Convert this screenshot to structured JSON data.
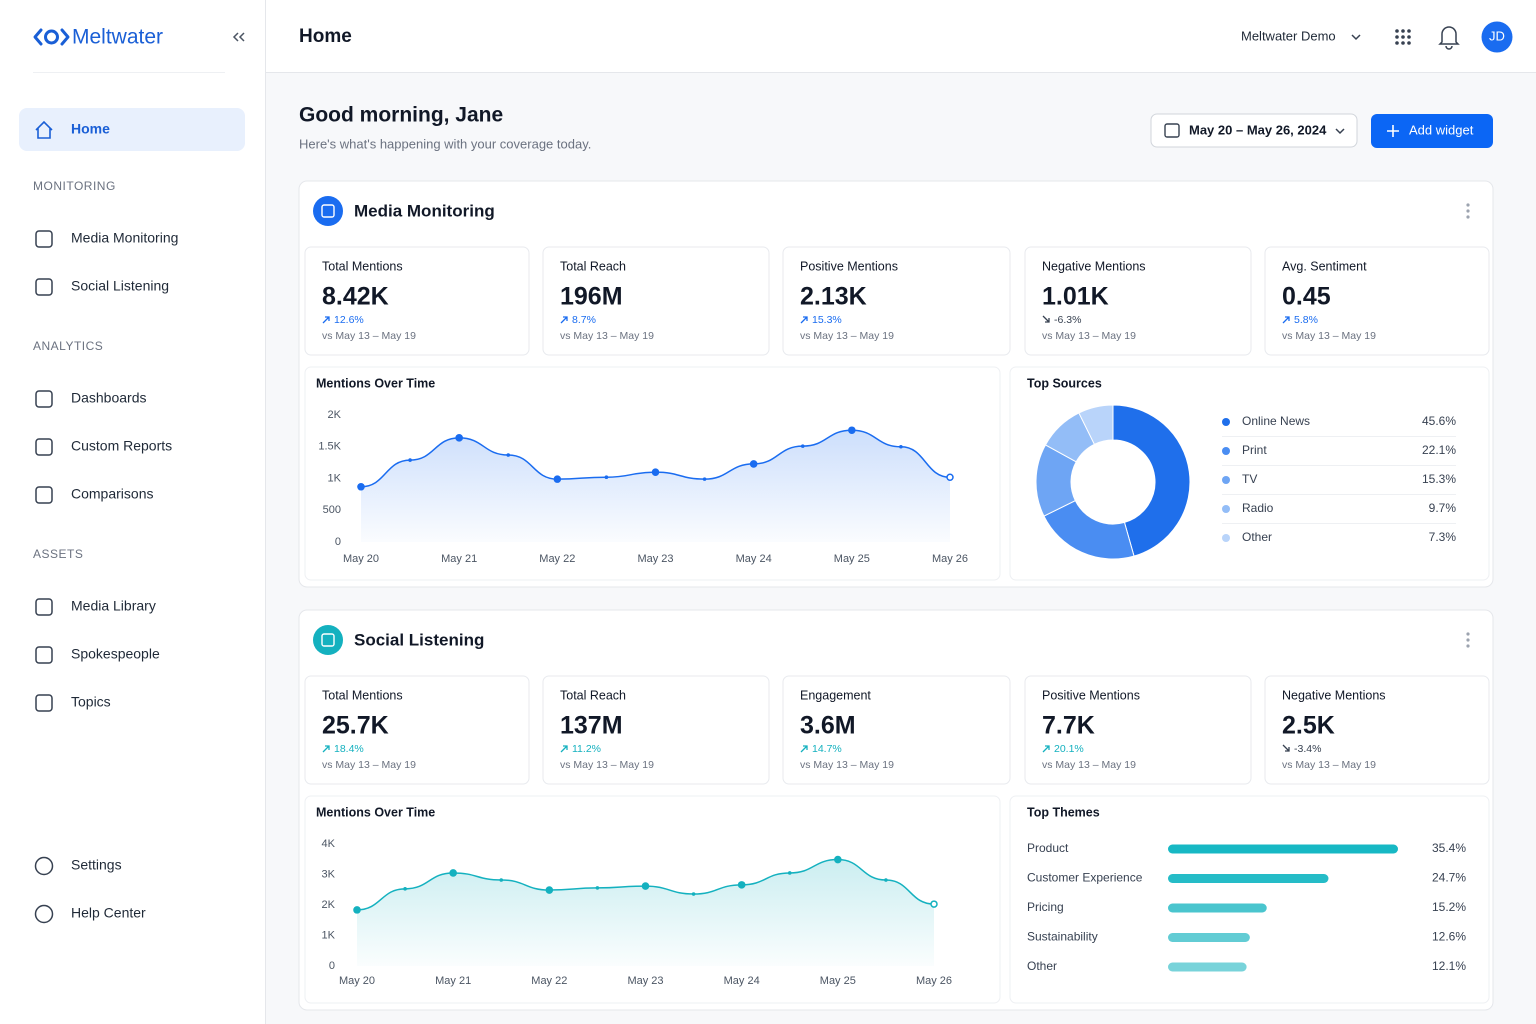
{
  "sidebar": {
    "brand": "Meltwater",
    "home": "Home",
    "sections": [
      {
        "title": "MONITORING",
        "items": [
          "Media Monitoring",
          "Social Listening"
        ]
      },
      {
        "title": "ANALYTICS",
        "items": [
          "Dashboards",
          "Custom Reports",
          "Comparisons"
        ]
      },
      {
        "title": "ASSETS",
        "items": [
          "Media Library",
          "Spokespeople",
          "Topics"
        ]
      }
    ],
    "footer": [
      "Settings",
      "Help Center"
    ]
  },
  "header": {
    "title": "Home",
    "account": "Meltwater Demo",
    "avatar": "JD"
  },
  "greeting": {
    "title": "Good morning, Jane",
    "subtitle": "Here's what's happening with your coverage today.",
    "date_range": "May 20 – May 26, 2024",
    "add_widget": "Add widget"
  },
  "panels": [
    {
      "title": "Media Monitoring",
      "color": "#1a6cf0",
      "kpis": [
        {
          "label": "Total Mentions",
          "value": "8.42K",
          "change": "12.6%",
          "period": "vs May 13 – May 19"
        },
        {
          "label": "Total Reach",
          "value": "196M",
          "change": "8.7%",
          "period": "vs May 13 – May 19"
        },
        {
          "label": "Positive Mentions",
          "value": "2.13K",
          "change": "15.3%",
          "period": "vs May 13 – May 19"
        },
        {
          "label": "Negative Mentions",
          "value": "1.01K",
          "change": "-6.3%",
          "period": "vs May 13 – May 19"
        },
        {
          "label": "Avg. Sentiment",
          "value": "0.45",
          "change": "5.8%",
          "period": "vs May 13 – May 19"
        }
      ],
      "chart_data": [
        {
          "type": "line",
          "title": "Mentions Over Time",
          "categories": [
            "May 20",
            null,
            "May 21",
            null,
            "May 22",
            null,
            "May 23",
            null,
            "May 24",
            null,
            "May 25",
            null,
            "May 26"
          ],
          "values": [
            870,
            1290,
            1640,
            1370,
            990,
            1020,
            1100,
            990,
            1230,
            1510,
            1760,
            1500,
            1020
          ],
          "color": "#1a6cf0",
          "ylim": [
            0,
            2000
          ],
          "yticks": [
            0,
            500,
            {
              "value": 1000,
              "label": "1K"
            },
            {
              "value": 1500,
              "label": "1.5K"
            },
            {
              "value": 2000,
              "label": "2K"
            }
          ]
        },
        {
          "type": "donut",
          "title": "Top Sources",
          "categories": [
            "Online News",
            "Print",
            "TV",
            "Radio",
            "Other"
          ],
          "values": [
            45.6,
            22.1,
            15.3,
            9.7,
            7.3
          ],
          "value_labels": [
            "45.6%",
            "22.1%",
            "15.3%",
            "9.7%",
            "7.3%"
          ],
          "colors": [
            "#1f6feb",
            "#4a8df2",
            "#6ea5f4",
            "#93bdf7",
            "#b9d4fa"
          ]
        }
      ]
    },
    {
      "title": "Social Listening",
      "color": "#14b1bf",
      "kpis": [
        {
          "label": "Total Mentions",
          "value": "25.7K",
          "change": "18.4%",
          "period": "vs May 13 – May 19"
        },
        {
          "label": "Total Reach",
          "value": "137M",
          "change": "11.2%",
          "period": "vs May 13 – May 19"
        },
        {
          "label": "Engagement",
          "value": "3.6M",
          "change": "14.7%",
          "period": "vs May 13 – May 19"
        },
        {
          "label": "Positive Mentions",
          "value": "7.7K",
          "change": "20.1%",
          "period": "vs May 13 – May 19"
        },
        {
          "label": "Negative Mentions",
          "value": "2.5K",
          "change": "-3.4%",
          "period": "vs May 13 – May 19"
        }
      ],
      "chart_data": [
        {
          "type": "line",
          "title": "Mentions Over Time",
          "categories": [
            "May 20",
            null,
            "May 21",
            null,
            "May 22",
            null,
            "May 23",
            null,
            "May 24",
            null,
            "May 25",
            null,
            "May 26"
          ],
          "values": [
            1840,
            2530,
            3050,
            2820,
            2490,
            2560,
            2620,
            2360,
            2660,
            3050,
            3490,
            2820,
            2030
          ],
          "color": "#14b1bf",
          "ylim": [
            0,
            4000
          ],
          "yticks": [
            0,
            {
              "value": 1000,
              "label": "1K"
            },
            {
              "value": 2000,
              "label": "2K"
            },
            {
              "value": 3000,
              "label": "3K"
            },
            {
              "value": 4000,
              "label": "4K"
            }
          ]
        },
        {
          "type": "bar",
          "orientation": "horizontal",
          "title": "Top Themes",
          "categories": [
            "Product",
            "Customer Experience",
            "Pricing",
            "Sustainability",
            "Other"
          ],
          "values": [
            35.4,
            24.7,
            15.2,
            12.6,
            12.1
          ],
          "value_labels": [
            "35.4%",
            "24.7%",
            "15.2%",
            "12.6%",
            "12.1%"
          ],
          "colors": [
            "#17b8c4",
            "#25bcc7",
            "#4ac5ce",
            "#62ccd4",
            "#78d3da"
          ]
        }
      ]
    }
  ]
}
